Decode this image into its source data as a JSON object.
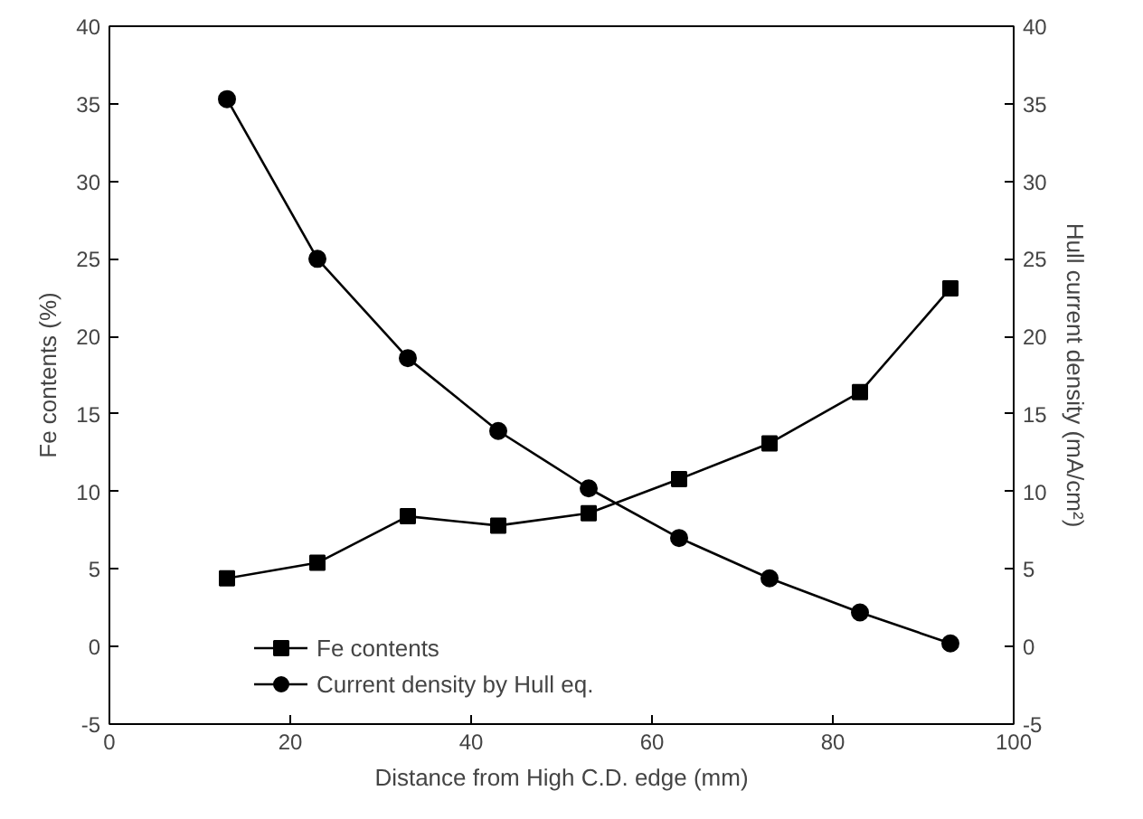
{
  "chart_data": {
    "type": "line",
    "xlabel": "Distance from High C.D. edge (mm)",
    "ylabel": "Fe contents (%)",
    "y2label": "Hull current density (mA/cm²)",
    "x": [
      13,
      23,
      33,
      43,
      53,
      63,
      73,
      83,
      93
    ],
    "series": [
      {
        "name": "Fe contents",
        "color": "#000000",
        "marker": "square",
        "values": [
          4.4,
          5.4,
          8.4,
          7.8,
          8.6,
          10.8,
          13.1,
          16.4,
          23.1
        ]
      },
      {
        "name": "Current density by Hull eq.",
        "color": "#000000",
        "marker": "circle",
        "axis": "y2",
        "values": [
          35.3,
          25.0,
          18.6,
          13.9,
          10.2,
          7.0,
          4.4,
          2.2,
          0.2
        ]
      }
    ],
    "xlim": [
      0,
      100
    ],
    "xticks": [
      0,
      20,
      40,
      60,
      80,
      100
    ],
    "ylim": [
      -5,
      40
    ],
    "yticks": [
      -5,
      0,
      5,
      10,
      15,
      20,
      25,
      30,
      35,
      40
    ],
    "y2lim": [
      -5,
      40
    ],
    "y2ticks": [
      -5,
      0,
      5,
      10,
      15,
      20,
      25,
      30,
      35,
      40
    ],
    "legend": "bottom left",
    "grid": false,
    "line_style": "solid"
  }
}
